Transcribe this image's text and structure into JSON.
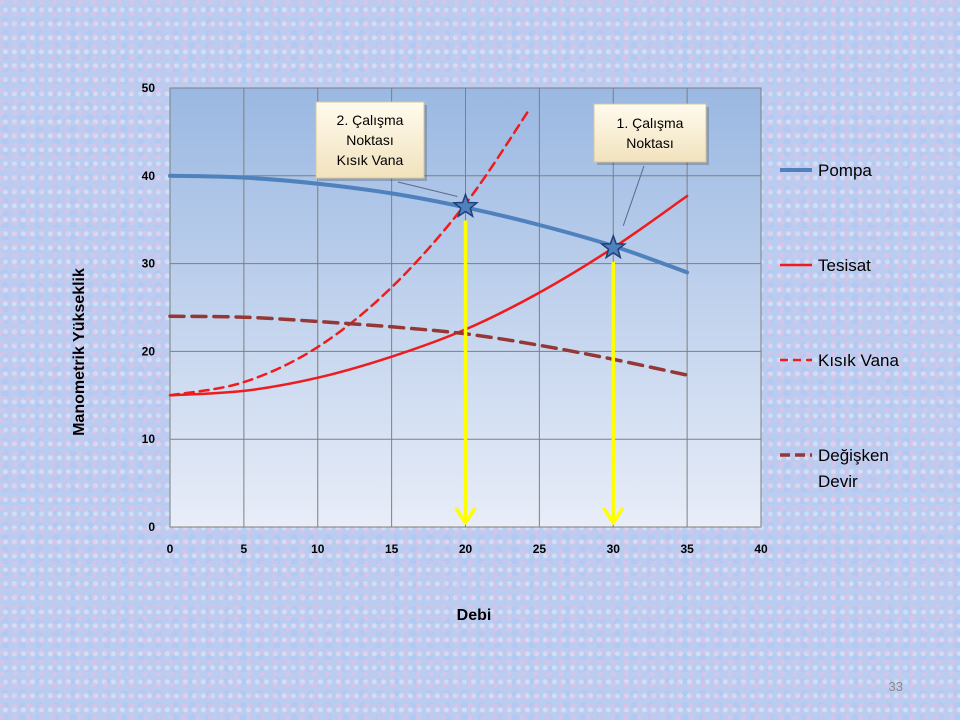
{
  "page_number": "33",
  "chart_data": {
    "type": "line",
    "xlabel": "Debi",
    "ylabel": "Manometrik  Yükseklik",
    "xlim": [
      0,
      40
    ],
    "ylim": [
      0,
      50
    ],
    "x_ticks": [
      "0",
      "5",
      "10",
      "15",
      "20",
      "25",
      "30",
      "35",
      "40"
    ],
    "y_ticks": [
      "0",
      "10",
      "20",
      "30",
      "40",
      "50"
    ],
    "grid": true,
    "legend_position": "right",
    "series": [
      {
        "name": "Pompa",
        "color": "#4f81bd",
        "style": "solid",
        "x": [
          0,
          5,
          10,
          15,
          20,
          25,
          30,
          35
        ],
        "y": [
          40,
          39.8,
          39.1,
          38.0,
          36.4,
          34.4,
          32.0,
          29.0
        ]
      },
      {
        "name": "Tesisat",
        "color": "#ee1c1c",
        "style": "solid",
        "x": [
          0,
          5,
          10,
          15,
          20,
          25,
          30,
          35
        ],
        "y": [
          15,
          15.5,
          17,
          19.4,
          22.5,
          26.7,
          31.8,
          37.7
        ]
      },
      {
        "name": "Kısık Vana",
        "color": "#ee1c1c",
        "style": "dashed",
        "x": [
          0,
          5,
          10,
          15,
          20,
          24.3
        ],
        "y": [
          15,
          16.5,
          20.5,
          27.3,
          36.8,
          47.5
        ]
      },
      {
        "name": "Değişken Devir",
        "color": "#953735",
        "style": "dashed",
        "x": [
          0,
          5,
          10,
          15,
          20,
          25,
          30,
          35
        ],
        "y": [
          24,
          23.9,
          23.4,
          22.8,
          22,
          20.7,
          19.1,
          17.3
        ]
      }
    ],
    "operating_points": [
      {
        "x": 20,
        "y": 36.5,
        "label": "2. Çalışma Noktası Kısık Vana",
        "label_lines": [
          "2. Çalışma",
          "Noktası",
          "Kısık Vana"
        ]
      },
      {
        "x": 30,
        "y": 31.8,
        "label": "1. Çalışma Noktası",
        "label_lines": [
          "1. Çalışma",
          "Noktası"
        ]
      }
    ],
    "arrow_color": "#ffff00"
  }
}
